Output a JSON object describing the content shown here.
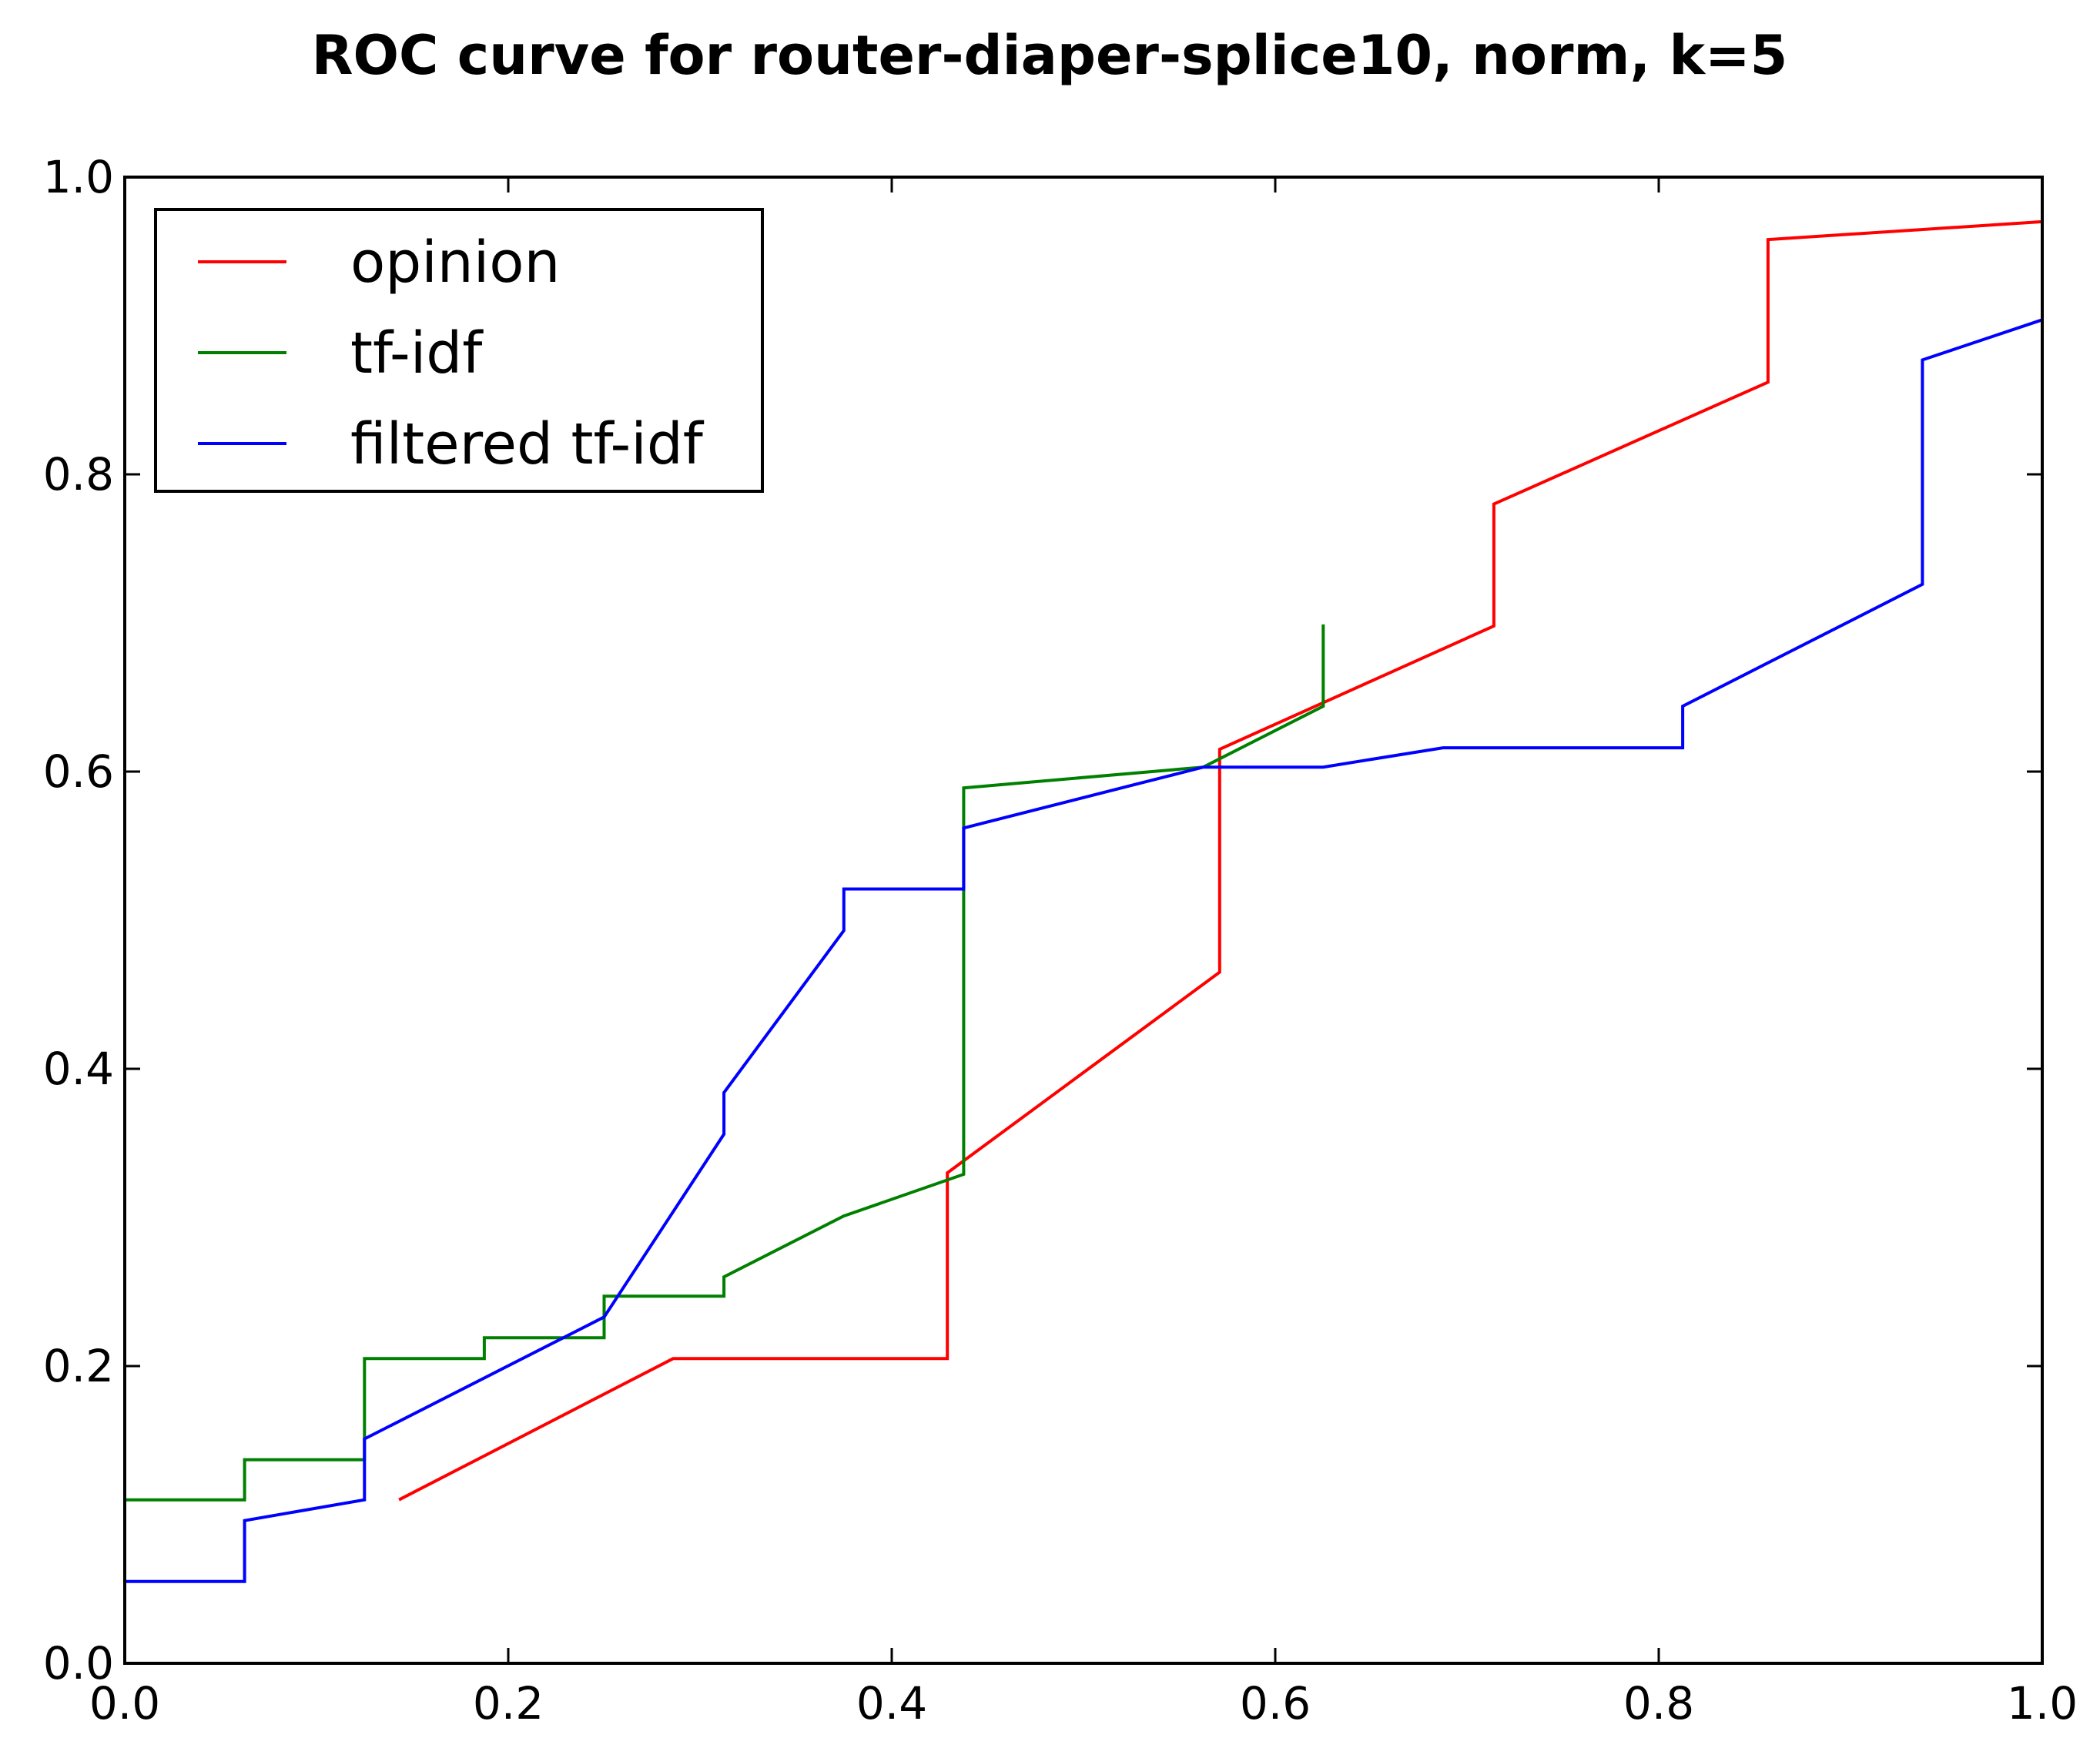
{
  "chart_data": {
    "type": "line",
    "title": "ROC curve for router-diaper-splice10, norm, k=5",
    "xlabel": "",
    "ylabel": "",
    "xlim": [
      0.0,
      1.0
    ],
    "ylim": [
      0.0,
      1.0
    ],
    "x_ticks": [
      "0.0",
      "0.2",
      "0.4",
      "0.6",
      "0.8",
      "1.0"
    ],
    "y_ticks": [
      "0.0",
      "0.2",
      "0.4",
      "0.6",
      "0.8",
      "1.0"
    ],
    "grid": false,
    "legend_position": "upper-left",
    "series": [
      {
        "name": "opinion",
        "color": "#ff0000",
        "x": [
          0.143,
          0.286,
          0.429,
          0.429,
          0.571,
          0.571,
          0.714,
          0.714,
          0.857,
          0.857,
          1.0
        ],
        "y": [
          0.11,
          0.205,
          0.205,
          0.33,
          0.465,
          0.615,
          0.698,
          0.78,
          0.862,
          0.958,
          0.97
        ]
      },
      {
        "name": "tf-idf",
        "color": "#008000",
        "x": [
          0.0,
          0.0625,
          0.0625,
          0.125,
          0.125,
          0.1875,
          0.1875,
          0.25,
          0.25,
          0.3125,
          0.3125,
          0.375,
          0.4375,
          0.4375,
          0.5625,
          0.625,
          0.625
        ],
        "y": [
          0.11,
          0.11,
          0.137,
          0.137,
          0.205,
          0.205,
          0.219,
          0.219,
          0.247,
          0.247,
          0.26,
          0.301,
          0.329,
          0.589,
          0.603,
          0.644,
          0.699
        ]
      },
      {
        "name": "filtered tf-idf",
        "color": "#0000ff",
        "x": [
          0.0,
          0.0625,
          0.0625,
          0.125,
          0.125,
          0.25,
          0.3125,
          0.3125,
          0.375,
          0.375,
          0.4375,
          0.4375,
          0.5625,
          0.625,
          0.6875,
          0.8125,
          0.8125,
          0.9375,
          0.9375,
          1.0
        ],
        "y": [
          0.055,
          0.055,
          0.096,
          0.11,
          0.151,
          0.233,
          0.356,
          0.384,
          0.493,
          0.521,
          0.521,
          0.562,
          0.603,
          0.603,
          0.616,
          0.616,
          0.644,
          0.726,
          0.877,
          0.904
        ]
      }
    ]
  }
}
